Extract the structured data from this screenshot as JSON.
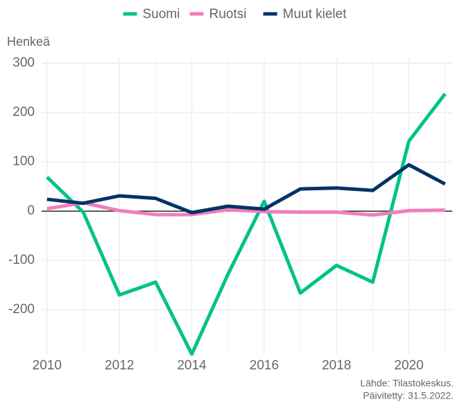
{
  "chart_data": {
    "type": "line",
    "y_label": "Henkeä",
    "x": [
      2010,
      2011,
      2012,
      2013,
      2014,
      2015,
      2016,
      2017,
      2018,
      2019,
      2020,
      2021
    ],
    "series": [
      {
        "name": "Suomi",
        "color": "#00c28a",
        "values": [
          69,
          -2,
          -170,
          -144,
          -290,
          -128,
          20,
          -166,
          -110,
          -144,
          142,
          238
        ]
      },
      {
        "name": "Ruotsi",
        "color": "#f27dbb",
        "values": [
          5,
          17,
          1,
          -7,
          -7,
          3,
          -1,
          -2,
          -2,
          -8,
          1,
          2
        ]
      },
      {
        "name": "Muut kielet",
        "color": "#003366",
        "values": [
          24,
          16,
          31,
          26,
          -3,
          10,
          4,
          45,
          47,
          42,
          94,
          55
        ]
      }
    ],
    "xlim": [
      2009.85,
      2021.2
    ],
    "xticks": [
      2010,
      2012,
      2014,
      2016,
      2018,
      2020
    ],
    "ylim": [
      -290,
      310
    ],
    "yticks": [
      -200,
      -100,
      0,
      100,
      200,
      300
    ],
    "grid": true,
    "legend": "top",
    "source": [
      "Lähde: Tilastokeskus.",
      "Päivitetty: 31.5.2022."
    ]
  }
}
